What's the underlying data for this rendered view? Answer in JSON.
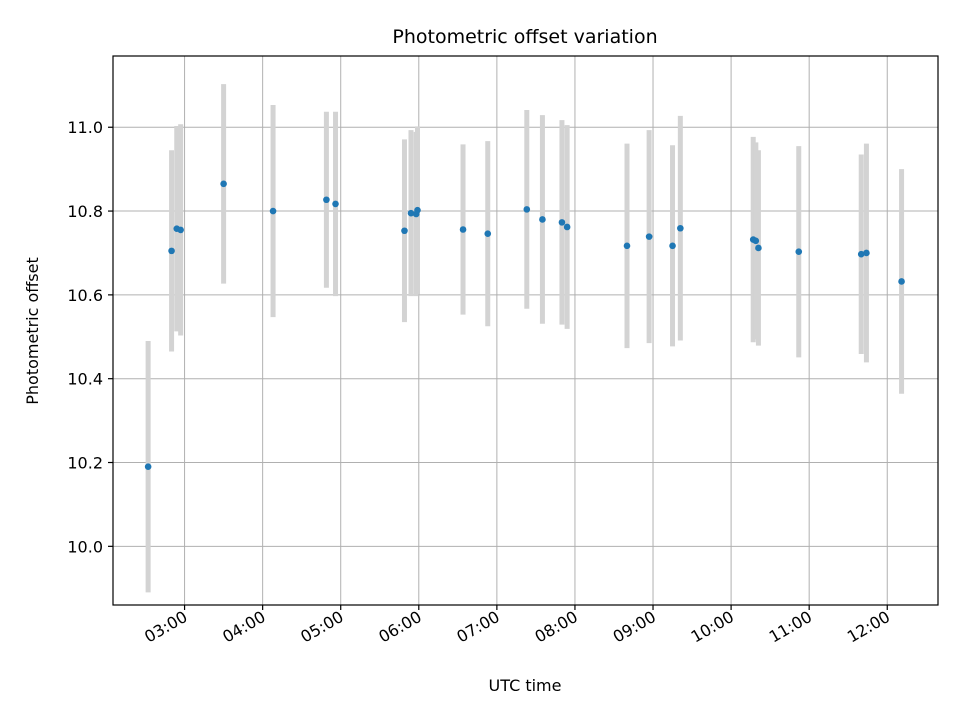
{
  "chart_data": {
    "type": "scatter",
    "title": "Photometric offset variation",
    "xlabel": "UTC time",
    "ylabel": "Photometric offset",
    "x_ticks": [
      "03:00",
      "04:00",
      "05:00",
      "06:00",
      "07:00",
      "08:00",
      "09:00",
      "10:00",
      "11:00",
      "12:00"
    ],
    "y_ticks": [
      "10.0",
      "10.2",
      "10.4",
      "10.6",
      "10.8",
      "11.0"
    ],
    "x_range": [
      "02:05",
      "12:39"
    ],
    "ylim": [
      9.86,
      11.17
    ],
    "grid": true,
    "point_color": "#1f77b4",
    "errorbar_color": "#d3d3d3",
    "points": [
      {
        "t": "02:32",
        "y": 10.19,
        "lo": 9.89,
        "hi": 10.49
      },
      {
        "t": "02:50",
        "y": 10.705,
        "lo": 10.465,
        "hi": 10.945
      },
      {
        "t": "02:54",
        "y": 10.758,
        "lo": 10.513,
        "hi": 11.003
      },
      {
        "t": "02:57",
        "y": 10.755,
        "lo": 10.503,
        "hi": 11.007
      },
      {
        "t": "03:30",
        "y": 10.865,
        "lo": 10.627,
        "hi": 11.103
      },
      {
        "t": "04:08",
        "y": 10.8,
        "lo": 10.547,
        "hi": 11.053
      },
      {
        "t": "04:49",
        "y": 10.827,
        "lo": 10.617,
        "hi": 11.037
      },
      {
        "t": "04:56",
        "y": 10.817,
        "lo": 10.597,
        "hi": 11.037
      },
      {
        "t": "05:49",
        "y": 10.753,
        "lo": 10.535,
        "hi": 10.971
      },
      {
        "t": "05:54",
        "y": 10.795,
        "lo": 10.597,
        "hi": 10.993
      },
      {
        "t": "05:58",
        "y": 10.793,
        "lo": 10.597,
        "hi": 10.989
      },
      {
        "t": "05:59",
        "y": 10.802,
        "lo": 10.602,
        "hi": 11.002
      },
      {
        "t": "06:34",
        "y": 10.756,
        "lo": 10.553,
        "hi": 10.959
      },
      {
        "t": "06:53",
        "y": 10.746,
        "lo": 10.525,
        "hi": 10.967
      },
      {
        "t": "07:23",
        "y": 10.804,
        "lo": 10.567,
        "hi": 11.041
      },
      {
        "t": "07:35",
        "y": 10.78,
        "lo": 10.531,
        "hi": 11.029
      },
      {
        "t": "07:50",
        "y": 10.773,
        "lo": 10.529,
        "hi": 11.017
      },
      {
        "t": "07:54",
        "y": 10.762,
        "lo": 10.519,
        "hi": 11.005
      },
      {
        "t": "08:40",
        "y": 10.717,
        "lo": 10.473,
        "hi": 10.961
      },
      {
        "t": "08:57",
        "y": 10.739,
        "lo": 10.485,
        "hi": 10.993
      },
      {
        "t": "09:15",
        "y": 10.717,
        "lo": 10.477,
        "hi": 10.957
      },
      {
        "t": "09:21",
        "y": 10.759,
        "lo": 10.491,
        "hi": 11.027
      },
      {
        "t": "10:17",
        "y": 10.732,
        "lo": 10.487,
        "hi": 10.977
      },
      {
        "t": "10:19",
        "y": 10.729,
        "lo": 10.494,
        "hi": 10.964
      },
      {
        "t": "10:21",
        "y": 10.712,
        "lo": 10.479,
        "hi": 10.945
      },
      {
        "t": "10:52",
        "y": 10.703,
        "lo": 10.451,
        "hi": 10.955
      },
      {
        "t": "11:40",
        "y": 10.697,
        "lo": 10.459,
        "hi": 10.935
      },
      {
        "t": "11:44",
        "y": 10.7,
        "lo": 10.439,
        "hi": 10.961
      },
      {
        "t": "12:11",
        "y": 10.632,
        "lo": 10.364,
        "hi": 10.9
      }
    ]
  }
}
